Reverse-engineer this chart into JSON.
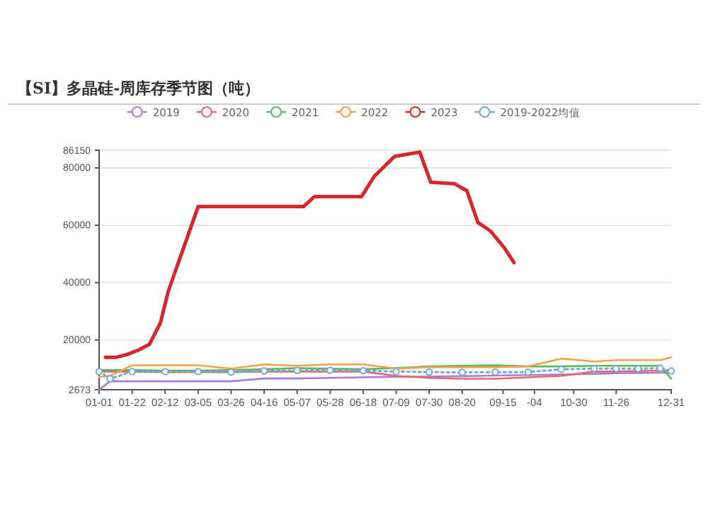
{
  "chart_data": {
    "type": "line",
    "title": "【SI】多晶硅-周库存季节图（吨）",
    "xlim": [
      "--01-01",
      "--12-31"
    ],
    "xticks": [
      {
        "value": "--01-01",
        "label": "01-01"
      },
      {
        "value": "--01-22",
        "label": "01-22"
      },
      {
        "value": "--02-12",
        "label": "02-12"
      },
      {
        "value": "--03-05",
        "label": "03-05"
      },
      {
        "value": "--03-26",
        "label": "03-26"
      },
      {
        "value": "--04-16",
        "label": "04-16"
      },
      {
        "value": "--05-07",
        "label": "05-07"
      },
      {
        "value": "--05-28",
        "label": "05-28"
      },
      {
        "value": "--06-18",
        "label": "06-18"
      },
      {
        "value": "--07-09",
        "label": "07-09"
      },
      {
        "value": "--07-30",
        "label": "07-30"
      },
      {
        "value": "--08-20",
        "label": "08-20"
      },
      {
        "value": "--09-15",
        "label": "09-15"
      },
      {
        "value": "--10-05",
        "label": "-04"
      },
      {
        "value": "--10-30",
        "label": "10-30"
      },
      {
        "value": "--11-26",
        "label": "11-26"
      },
      {
        "value": "--12-31",
        "label": "12-31"
      }
    ],
    "ylim": [
      2673,
      86150
    ],
    "yticks": [
      2673,
      20000,
      40000,
      60000,
      80000,
      86150
    ],
    "grid": "y",
    "legend": "top",
    "series": [
      {
        "name": "2019",
        "color": "#a77ddb",
        "marker": "none",
        "line_style": "solid",
        "x": [
          "--01-01",
          "--01-08",
          "--01-22",
          "--02-12",
          "--03-05",
          "--03-26",
          "--04-16",
          "--05-07",
          "--05-28",
          "--06-18",
          "--07-09",
          "--07-30",
          "--08-20",
          "--09-10",
          "--10-01",
          "--10-22",
          "--11-12",
          "--11-26",
          "--12-10",
          "--12-24",
          "--12-31"
        ],
        "values": [
          2673,
          5600,
          5600,
          5600,
          5600,
          5600,
          6600,
          6600,
          6800,
          7000,
          7200,
          7200,
          7400,
          7600,
          7800,
          8000,
          8200,
          8400,
          8500,
          8600,
          8600
        ]
      },
      {
        "name": "2020",
        "color": "#e8676b",
        "marker": "none",
        "line_style": "solid",
        "x": [
          "--01-01",
          "--01-08",
          "--01-22",
          "--02-12",
          "--03-05",
          "--03-26",
          "--04-16",
          "--05-07",
          "--05-28",
          "--06-18",
          "--07-09",
          "--07-30",
          "--08-20",
          "--09-10",
          "--10-01",
          "--10-22",
          "--11-12",
          "--11-26",
          "--12-10",
          "--12-24",
          "--12-31"
        ],
        "values": [
          9000,
          9000,
          9000,
          8800,
          8800,
          8800,
          9000,
          9000,
          9000,
          9000,
          7500,
          6800,
          6500,
          6500,
          7000,
          7500,
          9000,
          9000,
          9200,
          9300,
          9300
        ]
      },
      {
        "name": "2021",
        "color": "#5cb85c",
        "marker": "none",
        "line_style": "solid",
        "x": [
          "--01-01",
          "--01-08",
          "--01-22",
          "--02-12",
          "--03-05",
          "--03-26",
          "--04-16",
          "--05-07",
          "--05-28",
          "--06-18",
          "--07-09",
          "--07-30",
          "--08-20",
          "--09-10",
          "--10-01",
          "--10-22",
          "--11-12",
          "--11-26",
          "--12-10",
          "--12-24",
          "--12-31"
        ],
        "values": [
          9500,
          9500,
          9500,
          9300,
          9300,
          9500,
          9800,
          10200,
          10000,
          9800,
          10200,
          10800,
          11000,
          11200,
          10800,
          10800,
          11000,
          11000,
          11000,
          11000,
          6500
        ]
      },
      {
        "name": "2022",
        "color": "#f5a04a",
        "marker": "none",
        "line_style": "solid",
        "x": [
          "--01-01",
          "--01-08",
          "--01-22",
          "--02-12",
          "--03-05",
          "--03-26",
          "--04-16",
          "--05-07",
          "--05-28",
          "--06-18",
          "--07-09",
          "--07-30",
          "--08-20",
          "--09-10",
          "--10-01",
          "--10-22",
          "--11-12",
          "--11-26",
          "--12-10",
          "--12-24",
          "--12-31"
        ],
        "values": [
          7100,
          7500,
          11200,
          11200,
          11200,
          10000,
          11500,
          11000,
          11500,
          11500,
          10000,
          10500,
          10500,
          10500,
          10800,
          13500,
          12500,
          13000,
          13000,
          13000,
          14000
        ]
      },
      {
        "name": "2023",
        "color": "#d9262b",
        "marker": "none",
        "line_style": "solid",
        "x": [
          "--01-05",
          "--01-12",
          "--01-19",
          "--01-26",
          "--02-02",
          "--02-09",
          "--02-14",
          "--03-05",
          "--05-11",
          "--05-18",
          "--06-17",
          "--06-25",
          "--07-08",
          "--07-24",
          "--07-31",
          "--08-15",
          "--08-23",
          "--08-30",
          "--09-07",
          "--09-16",
          "--09-22"
        ],
        "values": [
          14000,
          14000,
          15000,
          16500,
          18500,
          26000,
          37000,
          66500,
          66500,
          70000,
          70000,
          77000,
          84000,
          85500,
          75000,
          74500,
          72000,
          61000,
          58000,
          52000,
          47000
        ]
      },
      {
        "name": "2019-2022均值",
        "color": "#6fa8dc",
        "marker": "circle",
        "line_style": "dotted",
        "x": [
          "--01-01",
          "--01-08",
          "--01-22",
          "--02-12",
          "--03-05",
          "--03-26",
          "--04-16",
          "--05-07",
          "--05-28",
          "--06-18",
          "--07-09",
          "--07-30",
          "--08-20",
          "--09-10",
          "--10-01",
          "--10-22",
          "--11-12",
          "--11-26",
          "--12-10",
          "--12-24",
          "--12-31"
        ],
        "values": [
          9000,
          6500,
          9000,
          9000,
          9000,
          8800,
          9200,
          9400,
          9500,
          9300,
          9000,
          8800,
          8700,
          8800,
          8800,
          9800,
          10000,
          10000,
          10000,
          10200,
          9200
        ]
      }
    ]
  }
}
